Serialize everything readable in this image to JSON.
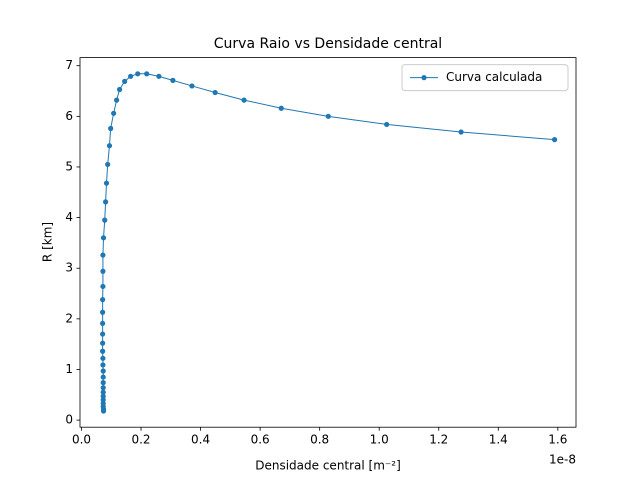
{
  "chart_data": {
    "type": "line",
    "title": "Curva Raio vs Densidade central",
    "x_label": "Densidade central [m⁻²]",
    "y_label": "R [km]",
    "x_offset_label": "1e-8",
    "x": [
      0.074,
      0.074,
      0.073,
      0.073,
      0.073,
      0.073,
      0.073,
      0.073,
      0.073,
      0.073,
      0.073,
      0.072,
      0.072,
      0.071,
      0.071,
      0.071,
      0.071,
      0.071,
      0.071,
      0.072,
      0.072,
      0.072,
      0.074,
      0.078,
      0.081,
      0.084,
      0.088,
      0.094,
      0.098,
      0.108,
      0.118,
      0.128,
      0.145,
      0.165,
      0.189,
      0.219,
      0.26,
      0.307,
      0.371,
      0.449,
      0.546,
      0.671,
      0.829,
      1.025,
      1.275,
      1.589
    ],
    "series": [
      {
        "name": "Curva calculada",
        "color": "#1f77b4",
        "values": [
          0.18,
          0.22,
          0.27,
          0.33,
          0.4,
          0.47,
          0.55,
          0.64,
          0.74,
          0.85,
          0.97,
          1.09,
          1.22,
          1.36,
          1.52,
          1.7,
          1.91,
          2.13,
          2.38,
          2.64,
          2.94,
          3.26,
          3.6,
          3.95,
          4.31,
          4.68,
          5.05,
          5.42,
          5.76,
          6.06,
          6.32,
          6.53,
          6.69,
          6.79,
          6.84,
          6.84,
          6.79,
          6.71,
          6.6,
          6.47,
          6.32,
          6.16,
          6.0,
          5.84,
          5.69,
          5.54
        ]
      }
    ],
    "xlim": [
      -0.005,
      1.661
    ],
    "ylim": [
      -0.14,
      7.16
    ],
    "xticks": [
      {
        "value": 0,
        "label": "0.0"
      },
      0.2,
      0.4,
      0.6,
      0.8,
      {
        "value": 1,
        "label": "1.0"
      },
      1.2,
      1.4,
      1.6
    ],
    "yticks": [
      0,
      1,
      2,
      3,
      4,
      5,
      6,
      7
    ],
    "legend": "upper right",
    "grid": false
  }
}
